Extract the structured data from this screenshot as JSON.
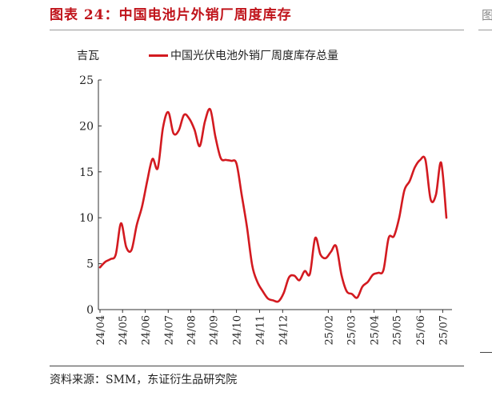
{
  "figure": {
    "title": "图表 24：中国电池片外销厂周度库存",
    "source": "资料来源：SMM，东证衍生品研究院",
    "edge_glyph": "图"
  },
  "chart_data": {
    "type": "line",
    "title": "",
    "ylabel": "吉瓦",
    "xlabel": "",
    "ylim": [
      0,
      25
    ],
    "yticks": [
      0,
      5,
      10,
      15,
      20,
      25
    ],
    "grid": false,
    "legend_position": "top",
    "x_tick_labels": [
      "24/04",
      "24/05",
      "24/06",
      "24/07",
      "24/08",
      "24/09",
      "24/10",
      "24/11",
      "24/12",
      "25/02",
      "25/03",
      "25/04",
      "25/05",
      "25/06",
      "25/07"
    ],
    "x_tick_index": [
      0,
      4.3,
      8.6,
      13,
      17.3,
      21.6,
      26,
      30.4,
      34.8,
      43.5,
      47.8,
      52.2,
      56.5,
      61,
      65.3
    ],
    "series": [
      {
        "name": "中国光伏电池外销厂周度库存总量",
        "color": "#d31a20",
        "values": [
          4.6,
          5.2,
          5.5,
          6.0,
          9.4,
          6.8,
          6.5,
          9.2,
          11.2,
          14.0,
          16.4,
          15.4,
          19.8,
          21.5,
          19.2,
          19.5,
          21.2,
          20.8,
          19.6,
          17.8,
          20.5,
          21.8,
          18.8,
          16.5,
          16.3,
          16.2,
          15.9,
          12.5,
          9.0,
          4.8,
          3.0,
          2.0,
          1.2,
          1.0,
          0.9,
          1.8,
          3.5,
          3.7,
          3.2,
          4.2,
          3.9,
          7.8,
          6.0,
          5.6,
          6.3,
          6.9,
          3.8,
          2.0,
          1.7,
          1.3,
          2.5,
          3.0,
          3.8,
          4.0,
          4.3,
          7.8,
          8.0,
          10.0,
          13.0,
          14.0,
          15.5,
          16.3,
          16.3,
          12.0,
          12.5,
          16.0,
          10.0
        ]
      }
    ]
  }
}
